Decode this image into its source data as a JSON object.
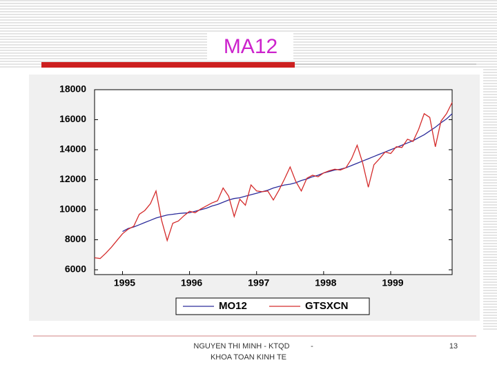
{
  "slide_title": "MA12",
  "footer": {
    "author": "NGUYEN THI MINH - KTQD",
    "faculty": "KHOA TOAN KINH TE",
    "separator": "-",
    "page": "13"
  },
  "chart_data": {
    "type": "line",
    "categories": [
      null,
      null,
      null,
      null,
      null,
      "1995",
      null,
      null,
      null,
      null,
      null,
      null,
      null,
      null,
      null,
      null,
      null,
      "1996",
      null,
      null,
      null,
      null,
      null,
      null,
      null,
      null,
      null,
      null,
      null,
      "1997",
      null,
      null,
      null,
      null,
      null,
      null,
      null,
      null,
      null,
      null,
      null,
      "1998",
      null,
      null,
      null,
      null,
      null,
      null,
      null,
      null,
      null,
      null,
      null,
      "1999",
      null,
      null,
      null,
      null,
      null,
      null,
      null,
      null,
      null,
      null,
      null
    ],
    "series": [
      {
        "name": "MO12",
        "color": "#2a2a9a",
        "values": [
          null,
          null,
          null,
          null,
          null,
          8550,
          8750,
          8850,
          9000,
          9150,
          9300,
          9450,
          9550,
          9650,
          9700,
          9750,
          9780,
          9800,
          9900,
          10000,
          10100,
          10250,
          10350,
          10500,
          10650,
          10750,
          10800,
          10900,
          11000,
          11100,
          11200,
          11300,
          11450,
          11550,
          11650,
          11700,
          11800,
          11950,
          12050,
          12200,
          12300,
          12450,
          12550,
          12650,
          12700,
          12800,
          12950,
          13100,
          13250,
          13400,
          13550,
          13700,
          13850,
          14000,
          14150,
          14300,
          14450,
          14600,
          14800,
          15000,
          15250,
          15500,
          15800,
          16050,
          16400
        ]
      },
      {
        "name": "GTSXCN",
        "color": "#d42a2a",
        "values": [
          6800,
          6750,
          7100,
          7500,
          7950,
          8400,
          8700,
          8900,
          9700,
          9950,
          10400,
          11250,
          9300,
          7950,
          9100,
          9250,
          9600,
          9900,
          9800,
          10050,
          10250,
          10450,
          10600,
          11450,
          10900,
          9550,
          10700,
          10300,
          11650,
          11250,
          11200,
          11250,
          10650,
          11300,
          12050,
          12850,
          11900,
          11250,
          12100,
          12300,
          12200,
          12450,
          12600,
          12700,
          12650,
          12800,
          13400,
          14300,
          13100,
          11500,
          13000,
          13400,
          13850,
          13750,
          14200,
          14150,
          14700,
          14550,
          15350,
          16400,
          16150,
          14200,
          15900,
          16400,
          17150
        ]
      }
    ],
    "ylim": [
      5680,
      18000
    ],
    "yticks": [
      6000,
      8000,
      10000,
      12000,
      14000,
      16000,
      18000
    ],
    "grid": false,
    "legend": "bottom"
  }
}
